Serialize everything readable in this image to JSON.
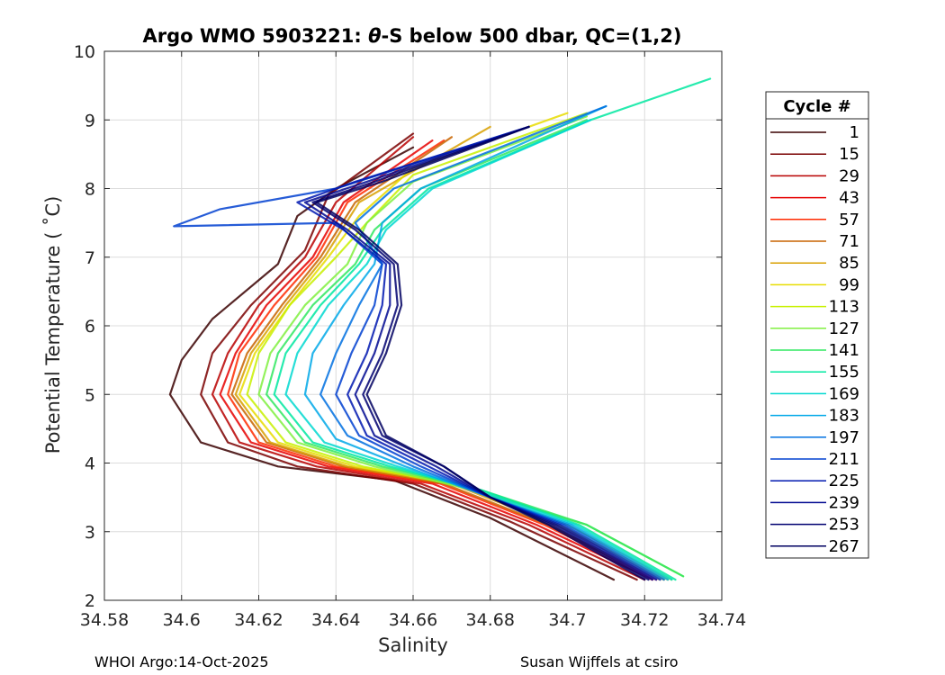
{
  "chart_data": {
    "type": "line",
    "title_prefix": "Argo WMO 5903221: ",
    "title_theta": "θ",
    "title_suffix": "-S below 500 dbar,  QC=(1,2)",
    "xlabel": "Salinity",
    "ylabel": "Potential Temperature ( ˚C)",
    "xlim": [
      34.58,
      34.74
    ],
    "ylim": [
      2,
      10
    ],
    "x_ticks": [
      "34.58",
      "34.6",
      "34.62",
      "34.64",
      "34.66",
      "34.68",
      "34.7",
      "34.72",
      "34.74"
    ],
    "y_ticks": [
      "2",
      "3",
      "4",
      "5",
      "6",
      "7",
      "8",
      "9",
      "10"
    ],
    "grid": true,
    "legend": {
      "title": "Cycle #",
      "placement": "right",
      "entries": [
        {
          "label": "1",
          "color": "#3a0000"
        },
        {
          "label": "15",
          "color": "#7a0000"
        },
        {
          "label": "29",
          "color": "#b80000"
        },
        {
          "label": "43",
          "color": "#e60000"
        },
        {
          "label": "57",
          "color": "#ff2a00"
        },
        {
          "label": "71",
          "color": "#c86400"
        },
        {
          "label": "85",
          "color": "#d8a000"
        },
        {
          "label": "99",
          "color": "#e8dc00"
        },
        {
          "label": "113",
          "color": "#c8f000"
        },
        {
          "label": "127",
          "color": "#80f040"
        },
        {
          "label": "141",
          "color": "#30e860"
        },
        {
          "label": "155",
          "color": "#00e8a0"
        },
        {
          "label": "169",
          "color": "#00d8d0"
        },
        {
          "label": "183",
          "color": "#00a8e8"
        },
        {
          "label": "197",
          "color": "#0070e0"
        },
        {
          "label": "211",
          "color": "#0040d0"
        },
        {
          "label": "225",
          "color": "#0018b0"
        },
        {
          "label": "239",
          "color": "#000890"
        },
        {
          "label": "253",
          "color": "#000070"
        },
        {
          "label": "267",
          "color": "#000060"
        }
      ]
    },
    "series": [
      {
        "cycle": "1",
        "color": "#3a0000",
        "points": [
          [
            34.712,
            2.3
          ],
          [
            34.68,
            3.2
          ],
          [
            34.655,
            3.75
          ],
          [
            34.625,
            3.95
          ],
          [
            34.605,
            4.3
          ],
          [
            34.597,
            5.0
          ],
          [
            34.6,
            5.5
          ],
          [
            34.608,
            6.1
          ],
          [
            34.625,
            6.9
          ],
          [
            34.63,
            7.6
          ],
          [
            34.64,
            8.0
          ],
          [
            34.66,
            8.6
          ]
        ]
      },
      {
        "cycle": "15",
        "color": "#7a0000",
        "points": [
          [
            34.718,
            2.3
          ],
          [
            34.685,
            3.15
          ],
          [
            34.66,
            3.7
          ],
          [
            34.63,
            3.95
          ],
          [
            34.612,
            4.3
          ],
          [
            34.605,
            5.0
          ],
          [
            34.608,
            5.6
          ],
          [
            34.618,
            6.3
          ],
          [
            34.632,
            7.1
          ],
          [
            34.638,
            7.9
          ],
          [
            34.66,
            8.8
          ]
        ]
      },
      {
        "cycle": "29",
        "color": "#b80000",
        "points": [
          [
            34.72,
            2.3
          ],
          [
            34.69,
            3.1
          ],
          [
            34.662,
            3.7
          ],
          [
            34.635,
            3.95
          ],
          [
            34.615,
            4.3
          ],
          [
            34.608,
            5.0
          ],
          [
            34.612,
            5.6
          ],
          [
            34.62,
            6.3
          ],
          [
            34.632,
            7.0
          ],
          [
            34.64,
            7.8
          ],
          [
            34.66,
            8.75
          ]
        ]
      },
      {
        "cycle": "43",
        "color": "#e60000",
        "points": [
          [
            34.722,
            2.3
          ],
          [
            34.692,
            3.1
          ],
          [
            34.665,
            3.7
          ],
          [
            34.638,
            3.95
          ],
          [
            34.618,
            4.3
          ],
          [
            34.61,
            5.0
          ],
          [
            34.614,
            5.6
          ],
          [
            34.622,
            6.3
          ],
          [
            34.634,
            7.0
          ],
          [
            34.642,
            7.8
          ],
          [
            34.665,
            8.7
          ]
        ]
      },
      {
        "cycle": "57",
        "color": "#ff2a00",
        "points": [
          [
            34.723,
            2.3
          ],
          [
            34.694,
            3.1
          ],
          [
            34.667,
            3.7
          ],
          [
            34.64,
            3.95
          ],
          [
            34.62,
            4.3
          ],
          [
            34.612,
            5.0
          ],
          [
            34.615,
            5.6
          ],
          [
            34.624,
            6.3
          ],
          [
            34.635,
            7.0
          ],
          [
            34.643,
            7.8
          ],
          [
            34.668,
            8.7
          ]
        ]
      },
      {
        "cycle": "71",
        "color": "#c86400",
        "points": [
          [
            34.724,
            2.3
          ],
          [
            34.695,
            3.1
          ],
          [
            34.668,
            3.7
          ],
          [
            34.642,
            3.95
          ],
          [
            34.622,
            4.3
          ],
          [
            34.613,
            5.0
          ],
          [
            34.617,
            5.6
          ],
          [
            34.626,
            6.3
          ],
          [
            34.636,
            7.0
          ],
          [
            34.645,
            7.8
          ],
          [
            34.67,
            8.75
          ]
        ]
      },
      {
        "cycle": "85",
        "color": "#d8a000",
        "points": [
          [
            34.725,
            2.3
          ],
          [
            34.697,
            3.1
          ],
          [
            34.67,
            3.7
          ],
          [
            34.643,
            3.95
          ],
          [
            34.623,
            4.3
          ],
          [
            34.614,
            5.0
          ],
          [
            34.618,
            5.6
          ],
          [
            34.627,
            6.3
          ],
          [
            34.637,
            7.0
          ],
          [
            34.646,
            7.8
          ],
          [
            34.68,
            8.9
          ]
        ]
      },
      {
        "cycle": "99",
        "color": "#e8dc00",
        "points": [
          [
            34.726,
            2.3
          ],
          [
            34.698,
            3.1
          ],
          [
            34.672,
            3.7
          ],
          [
            34.645,
            3.95
          ],
          [
            34.625,
            4.3
          ],
          [
            34.615,
            5.0
          ],
          [
            34.619,
            5.6
          ],
          [
            34.628,
            6.3
          ],
          [
            34.638,
            7.0
          ],
          [
            34.646,
            7.6
          ],
          [
            34.66,
            8.3
          ],
          [
            34.7,
            9.1
          ]
        ]
      },
      {
        "cycle": "113",
        "color": "#c8f000",
        "points": [
          [
            34.727,
            2.3
          ],
          [
            34.7,
            3.1
          ],
          [
            34.674,
            3.65
          ],
          [
            34.647,
            3.95
          ],
          [
            34.627,
            4.3
          ],
          [
            34.617,
            5.0
          ],
          [
            34.62,
            5.6
          ],
          [
            34.628,
            6.3
          ],
          [
            34.64,
            7.0
          ],
          [
            34.648,
            7.5
          ],
          [
            34.66,
            8.2
          ],
          [
            34.705,
            9.1
          ]
        ]
      },
      {
        "cycle": "127",
        "color": "#80f040",
        "points": [
          [
            34.73,
            2.35
          ],
          [
            34.705,
            3.1
          ],
          [
            34.676,
            3.6
          ],
          [
            34.65,
            3.95
          ],
          [
            34.63,
            4.3
          ],
          [
            34.62,
            5.0
          ],
          [
            34.623,
            5.6
          ],
          [
            34.632,
            6.3
          ],
          [
            34.643,
            6.9
          ],
          [
            34.648,
            7.5
          ],
          [
            34.66,
            8.1
          ],
          [
            34.705,
            9.05
          ]
        ]
      },
      {
        "cycle": "141",
        "color": "#30e860",
        "points": [
          [
            34.73,
            2.35
          ],
          [
            34.705,
            3.1
          ],
          [
            34.678,
            3.6
          ],
          [
            34.652,
            3.95
          ],
          [
            34.632,
            4.3
          ],
          [
            34.622,
            5.0
          ],
          [
            34.625,
            5.6
          ],
          [
            34.634,
            6.3
          ],
          [
            34.645,
            6.9
          ],
          [
            34.65,
            7.4
          ],
          [
            34.662,
            8.0
          ],
          [
            34.705,
            9.0
          ]
        ]
      },
      {
        "cycle": "155",
        "color": "#00e8a0",
        "points": [
          [
            34.728,
            2.3
          ],
          [
            34.703,
            3.1
          ],
          [
            34.678,
            3.6
          ],
          [
            34.654,
            3.95
          ],
          [
            34.634,
            4.3
          ],
          [
            34.624,
            5.0
          ],
          [
            34.627,
            5.6
          ],
          [
            34.636,
            6.3
          ],
          [
            34.646,
            6.9
          ],
          [
            34.652,
            7.4
          ],
          [
            34.664,
            8.0
          ],
          [
            34.706,
            9.0
          ],
          [
            34.737,
            9.6
          ]
        ]
      },
      {
        "cycle": "169",
        "color": "#00d8d0",
        "points": [
          [
            34.727,
            2.3
          ],
          [
            34.702,
            3.1
          ],
          [
            34.679,
            3.55
          ],
          [
            34.656,
            3.95
          ],
          [
            34.637,
            4.3
          ],
          [
            34.627,
            5.0
          ],
          [
            34.63,
            5.6
          ],
          [
            34.638,
            6.3
          ],
          [
            34.648,
            6.9
          ],
          [
            34.653,
            7.4
          ],
          [
            34.665,
            8.0
          ],
          [
            34.706,
            9.0
          ]
        ]
      },
      {
        "cycle": "183",
        "color": "#00a8e8",
        "points": [
          [
            34.726,
            2.3
          ],
          [
            34.701,
            3.1
          ],
          [
            34.68,
            3.5
          ],
          [
            34.658,
            3.95
          ],
          [
            34.64,
            4.35
          ],
          [
            34.632,
            5.0
          ],
          [
            34.634,
            5.6
          ],
          [
            34.642,
            6.3
          ],
          [
            34.65,
            6.9
          ],
          [
            34.652,
            7.5
          ],
          [
            34.662,
            8.0
          ],
          [
            34.71,
            9.2
          ]
        ]
      },
      {
        "cycle": "197",
        "color": "#0070e0",
        "points": [
          [
            34.725,
            2.3
          ],
          [
            34.7,
            3.1
          ],
          [
            34.68,
            3.5
          ],
          [
            34.66,
            3.95
          ],
          [
            34.643,
            4.4
          ],
          [
            34.636,
            5.0
          ],
          [
            34.64,
            5.6
          ],
          [
            34.646,
            6.3
          ],
          [
            34.652,
            6.9
          ],
          [
            34.645,
            7.5
          ],
          [
            34.655,
            8.0
          ],
          [
            34.71,
            9.2
          ]
        ]
      },
      {
        "cycle": "211",
        "color": "#0040d0",
        "points": [
          [
            34.724,
            2.3
          ],
          [
            34.699,
            3.1
          ],
          [
            34.68,
            3.5
          ],
          [
            34.662,
            3.95
          ],
          [
            34.646,
            4.4
          ],
          [
            34.64,
            5.0
          ],
          [
            34.644,
            5.6
          ],
          [
            34.65,
            6.3
          ],
          [
            34.652,
            6.9
          ],
          [
            34.64,
            7.5
          ],
          [
            34.598,
            7.45
          ],
          [
            34.61,
            7.7
          ],
          [
            34.64,
            8.0
          ],
          [
            34.69,
            8.9
          ]
        ]
      },
      {
        "cycle": "225",
        "color": "#0018b0",
        "points": [
          [
            34.723,
            2.3
          ],
          [
            34.698,
            3.1
          ],
          [
            34.68,
            3.5
          ],
          [
            34.664,
            3.95
          ],
          [
            34.648,
            4.4
          ],
          [
            34.643,
            5.0
          ],
          [
            34.648,
            5.6
          ],
          [
            34.652,
            6.3
          ],
          [
            34.653,
            6.9
          ],
          [
            34.642,
            7.4
          ],
          [
            34.63,
            7.8
          ],
          [
            34.645,
            8.1
          ],
          [
            34.69,
            8.9
          ]
        ]
      },
      {
        "cycle": "239",
        "color": "#000890",
        "points": [
          [
            34.722,
            2.3
          ],
          [
            34.697,
            3.1
          ],
          [
            34.68,
            3.5
          ],
          [
            34.666,
            3.95
          ],
          [
            34.65,
            4.4
          ],
          [
            34.645,
            5.0
          ],
          [
            34.65,
            5.6
          ],
          [
            34.654,
            6.3
          ],
          [
            34.654,
            6.9
          ],
          [
            34.643,
            7.4
          ],
          [
            34.632,
            7.8
          ],
          [
            34.648,
            8.1
          ],
          [
            34.69,
            8.9
          ]
        ]
      },
      {
        "cycle": "253",
        "color": "#000070",
        "points": [
          [
            34.721,
            2.3
          ],
          [
            34.696,
            3.1
          ],
          [
            34.68,
            3.5
          ],
          [
            34.668,
            3.95
          ],
          [
            34.652,
            4.4
          ],
          [
            34.647,
            5.0
          ],
          [
            34.652,
            5.6
          ],
          [
            34.656,
            6.3
          ],
          [
            34.655,
            6.9
          ],
          [
            34.645,
            7.4
          ],
          [
            34.634,
            7.8
          ],
          [
            34.65,
            8.1
          ],
          [
            34.69,
            8.9
          ]
        ]
      },
      {
        "cycle": "267",
        "color": "#000060",
        "points": [
          [
            34.72,
            2.3
          ],
          [
            34.695,
            3.1
          ],
          [
            34.68,
            3.5
          ],
          [
            34.668,
            3.95
          ],
          [
            34.653,
            4.4
          ],
          [
            34.648,
            5.0
          ],
          [
            34.653,
            5.6
          ],
          [
            34.657,
            6.3
          ],
          [
            34.656,
            6.9
          ],
          [
            34.646,
            7.4
          ],
          [
            34.635,
            7.8
          ],
          [
            34.652,
            8.1
          ],
          [
            34.69,
            8.9
          ]
        ]
      }
    ]
  },
  "footer": {
    "left": "WHOI Argo:14-Oct-2025",
    "right": "Susan Wijffels at csiro"
  }
}
